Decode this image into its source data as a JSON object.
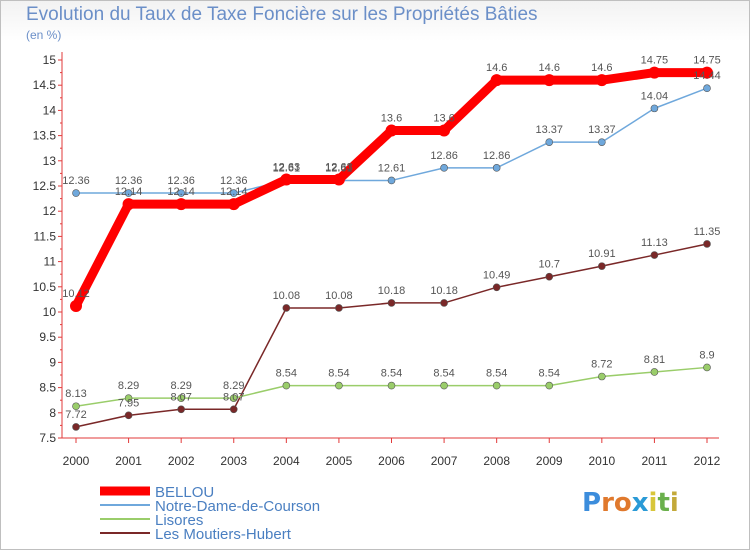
{
  "chart_data": {
    "type": "line",
    "title": "Evolution du Taux de Taxe Foncière sur les Propriétés Bâties",
    "ylabel": "(en %)",
    "xlabel": "",
    "ylim": [
      7.5,
      15
    ],
    "yticks": [
      "7.5",
      "8",
      "8.5",
      "9",
      "9.5",
      "10",
      "10.5",
      "11",
      "11.5",
      "12",
      "12.5",
      "13",
      "13.5",
      "14",
      "14.5",
      "15"
    ],
    "categories": [
      "2000",
      "2001",
      "2002",
      "2003",
      "2004",
      "2005",
      "2006",
      "2007",
      "2008",
      "2009",
      "2010",
      "2011",
      "2012"
    ],
    "grid": false,
    "legend_position": "bottom-left",
    "series": [
      {
        "name": "BELLOU",
        "color": "#ff0000",
        "values": [
          10.12,
          12.14,
          12.14,
          12.14,
          12.63,
          12.63,
          13.6,
          13.6,
          14.6,
          14.6,
          14.6,
          14.75,
          14.75
        ],
        "labels": [
          "10.12",
          "12.14",
          "12.14",
          "12.14",
          "12.63",
          "12.63",
          "13.6",
          "13.6",
          "14.6",
          "14.6",
          "14.6",
          "14.75",
          "14.75"
        ]
      },
      {
        "name": "Notre-Dame-de-Courson",
        "color": "#6fa8dc",
        "values": [
          12.36,
          12.36,
          12.36,
          12.36,
          12.61,
          12.61,
          12.61,
          12.86,
          12.86,
          13.37,
          13.37,
          14.04,
          14.44
        ],
        "labels": [
          "12.36",
          "12.36",
          "12.36",
          "12.36",
          "12.61",
          "12.61",
          "12.61",
          "12.86",
          "12.86",
          "13.37",
          "13.37",
          "14.04",
          "14.44"
        ]
      },
      {
        "name": "Lisores",
        "color": "#9acd6a",
        "values": [
          8.13,
          8.29,
          8.29,
          8.29,
          8.54,
          8.54,
          8.54,
          8.54,
          8.54,
          8.54,
          8.72,
          8.81,
          8.9
        ],
        "labels": [
          "8.13",
          "8.29",
          "8.29",
          "8.29",
          "8.54",
          "8.54",
          "8.54",
          "8.54",
          "8.54",
          "8.54",
          "8.72",
          "8.81",
          "8.9"
        ]
      },
      {
        "name": "Les Moutiers-Hubert",
        "color": "#7a2828",
        "values": [
          7.72,
          7.95,
          8.07,
          8.07,
          10.08,
          10.08,
          10.18,
          10.18,
          10.49,
          10.7,
          10.91,
          11.13,
          11.35
        ],
        "labels": [
          "7.72",
          "7.95",
          "8.07",
          "8.07",
          "10.08",
          "10.08",
          "10.18",
          "10.18",
          "10.49",
          "10.7",
          "10.91",
          "11.13",
          "11.35"
        ]
      }
    ]
  },
  "logo": {
    "letters": [
      "P",
      "r",
      "o",
      "x",
      "i",
      "t",
      "i"
    ],
    "colors": [
      "#3c8ddc",
      "#e0792d",
      "#e0792d",
      "#2a9ad6",
      "#d8c63a",
      "#6ab04c",
      "#c3a93a"
    ]
  }
}
